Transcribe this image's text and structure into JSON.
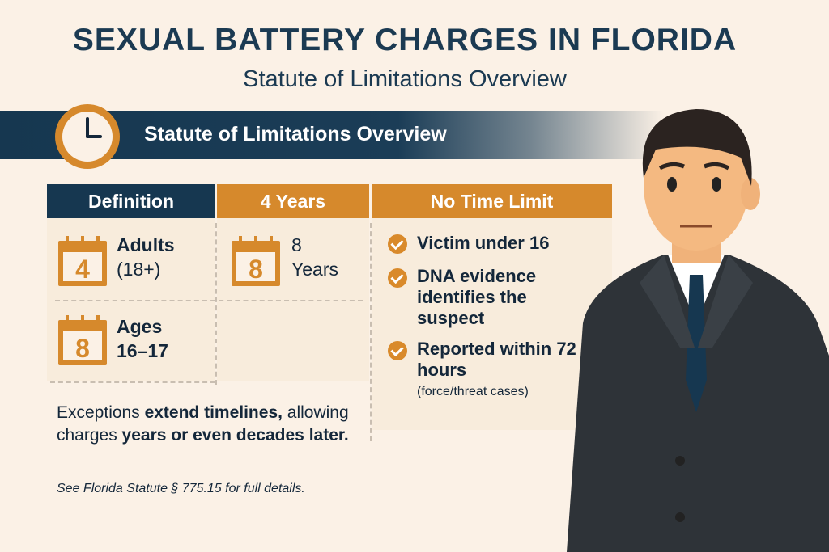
{
  "title": "SEXUAL BATTERY CHARGES IN FLORIDA",
  "subtitle": "Statute of Limitations Overview",
  "banner": {
    "label": "Statute of Limitations Overview",
    "icon": "clock-icon"
  },
  "table": {
    "headers": [
      "Definition",
      "4 Years",
      "No Time Limit"
    ],
    "definition_rows": [
      {
        "number": "4",
        "label_line1": "Adults",
        "label_line2": "(18+)"
      },
      {
        "number": "8",
        "label_line1": "Ages",
        "label_line2": "16–17"
      }
    ],
    "years_cell": {
      "number": "8",
      "label_line1": "8",
      "label_line2": "Years"
    },
    "no_limit_items": [
      {
        "text": "Victim under 16"
      },
      {
        "text": "DNA evidence identifies the suspect"
      },
      {
        "text": "Reported within 72 hours",
        "note": "(force/threat cases)"
      }
    ]
  },
  "exceptions": {
    "part1": "Exceptions ",
    "bold1": "extend timelines,",
    "part2": " allowing charges ",
    "bold2": "years or even decades later."
  },
  "footnote": "See Florida Statute § 775.15 for full details.",
  "colors": {
    "navy": "#163750",
    "orange": "#d6892c",
    "background": "#fbf1e6"
  }
}
